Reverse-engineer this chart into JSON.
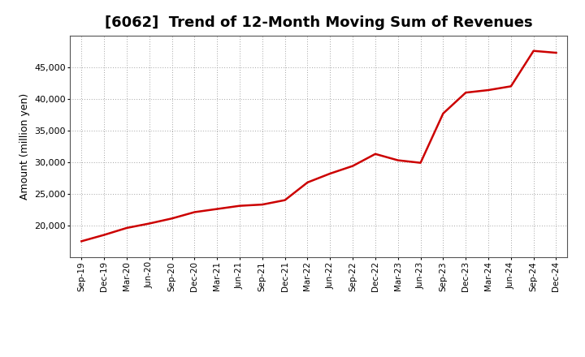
{
  "title": "[6062]  Trend of 12-Month Moving Sum of Revenues",
  "ylabel": "Amount (million yen)",
  "line_color": "#CC0000",
  "background_color": "#FFFFFF",
  "plot_bg_color": "#FFFFFF",
  "grid_color": "#999999",
  "ylim": [
    15000,
    50000
  ],
  "yticks": [
    20000,
    25000,
    30000,
    35000,
    40000,
    45000
  ],
  "x_labels": [
    "Sep-19",
    "Dec-19",
    "Mar-20",
    "Jun-20",
    "Sep-20",
    "Dec-20",
    "Mar-21",
    "Jun-21",
    "Sep-21",
    "Dec-21",
    "Mar-22",
    "Jun-22",
    "Sep-22",
    "Dec-22",
    "Mar-23",
    "Jun-23",
    "Sep-23",
    "Dec-23",
    "Mar-24",
    "Jun-24",
    "Sep-24",
    "Dec-24"
  ],
  "values": [
    17500,
    18500,
    19600,
    20300,
    21100,
    22100,
    22600,
    23100,
    23300,
    24000,
    26800,
    28200,
    29400,
    31300,
    30300,
    29900,
    37700,
    41000,
    41400,
    42000,
    47600,
    47300
  ],
  "title_fontsize": 13,
  "ylabel_fontsize": 9,
  "xtick_fontsize": 7.5,
  "ytick_fontsize": 8,
  "linewidth": 1.8
}
